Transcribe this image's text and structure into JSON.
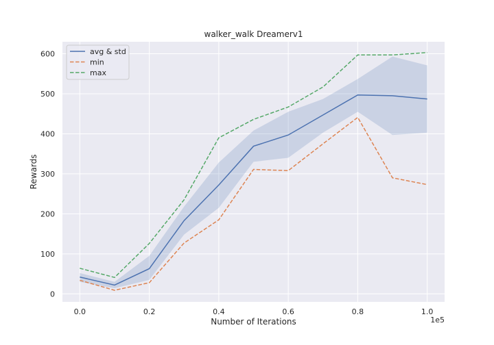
{
  "chart_data": {
    "type": "line",
    "title": "walker_walk Dreamerv1",
    "xlabel": "Number of Iterations",
    "ylabel": "Rewards",
    "x_offset_text": "1e5",
    "xlim": [
      -0.05,
      1.05
    ],
    "ylim": [
      -20,
      630
    ],
    "xticks": [
      0.0,
      0.2,
      0.4,
      0.6,
      0.8,
      1.0
    ],
    "xtick_labels": [
      "0.0",
      "0.2",
      "0.4",
      "0.6",
      "0.8",
      "1.0"
    ],
    "yticks": [
      0,
      100,
      200,
      300,
      400,
      500,
      600
    ],
    "ytick_labels": [
      "0",
      "100",
      "200",
      "300",
      "400",
      "500",
      "600"
    ],
    "grid": true,
    "legend_position": "top-left",
    "x": [
      0.0,
      0.1,
      0.2,
      0.3,
      0.4,
      0.5,
      0.6,
      0.7,
      0.8,
      0.9,
      1.0
    ],
    "series": [
      {
        "name": "avg & std",
        "style": "solid",
        "color": "#4c72b0",
        "values": [
          42,
          22,
          63,
          183,
          272,
          369,
          397,
          447,
          497,
          495,
          487
        ],
        "std_lower": [
          30,
          14,
          35,
          148,
          215,
          330,
          340,
          403,
          455,
          397,
          403
        ],
        "std_upper": [
          52,
          30,
          95,
          218,
          328,
          408,
          455,
          487,
          537,
          593,
          571
        ]
      },
      {
        "name": "min",
        "style": "dashed",
        "color": "#dd8452",
        "values": [
          34,
          9,
          28,
          127,
          185,
          311,
          308,
          375,
          441,
          290,
          273
        ]
      },
      {
        "name": "max",
        "style": "dashed",
        "color": "#55a868",
        "values": [
          64,
          41,
          126,
          235,
          390,
          436,
          467,
          517,
          597,
          597,
          603
        ]
      }
    ],
    "band_color": "#4c72b0",
    "plot_background": "#eaeaf2",
    "grid_color": "#ffffff"
  }
}
